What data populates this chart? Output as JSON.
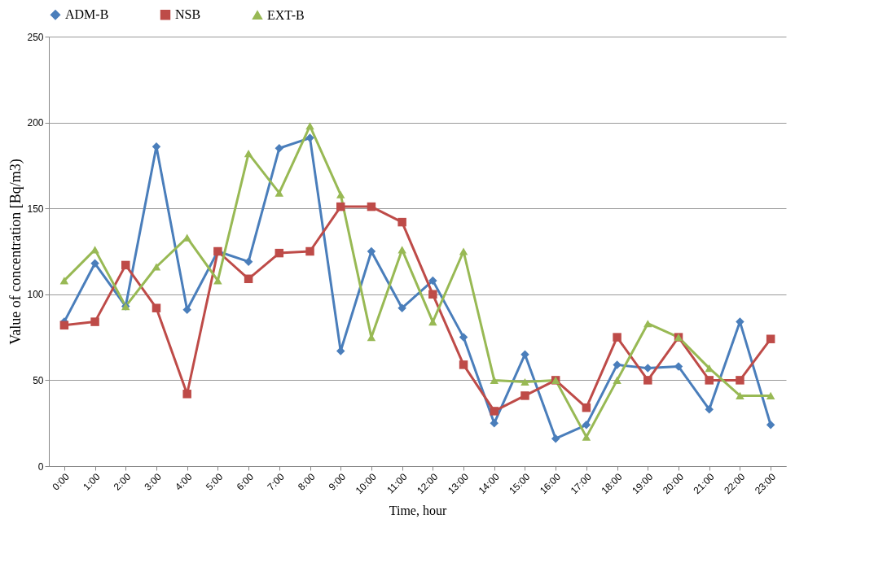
{
  "chart_data": {
    "type": "line",
    "xlabel": "Time, hour",
    "ylabel": "Value of concentration  [Bq/m3)",
    "categories": [
      "0:00",
      "1:00",
      "2:00",
      "3:00",
      "4:00",
      "5:00",
      "6:00",
      "7:00",
      "8:00",
      "9:00",
      "10:00",
      "11:00",
      "12:00",
      "13:00",
      "14:00",
      "15:00",
      "16:00",
      "17:00",
      "18:00",
      "19:00",
      "20:00",
      "21:00",
      "22:00",
      "23:00"
    ],
    "series": [
      {
        "name": "ADM-B",
        "color": "#4a7ebb",
        "marker": "diamond",
        "values": [
          84,
          118,
          93,
          186,
          91,
          125,
          119,
          185,
          191,
          67,
          125,
          92,
          108,
          75,
          25,
          65,
          16,
          24,
          59,
          57,
          58,
          33,
          84,
          24
        ]
      },
      {
        "name": "NSB",
        "color": "#be4b48",
        "marker": "square",
        "values": [
          82,
          84,
          117,
          92,
          42,
          125,
          109,
          124,
          125,
          151,
          151,
          142,
          100,
          59,
          32,
          41,
          50,
          34,
          75,
          50,
          75,
          50,
          50,
          74
        ]
      },
      {
        "name": "EXT-B",
        "color": "#98b954",
        "marker": "triangle",
        "values": [
          108,
          126,
          93,
          116,
          133,
          108,
          182,
          159,
          198,
          158,
          75,
          126,
          84,
          125,
          50,
          49,
          50,
          17,
          50,
          83,
          75,
          57,
          41,
          41
        ]
      }
    ],
    "ylim": [
      0,
      250
    ],
    "yticks": [
      0,
      50,
      100,
      150,
      200,
      250
    ],
    "grid": "y",
    "legend": "top",
    "line_style": "solid"
  }
}
